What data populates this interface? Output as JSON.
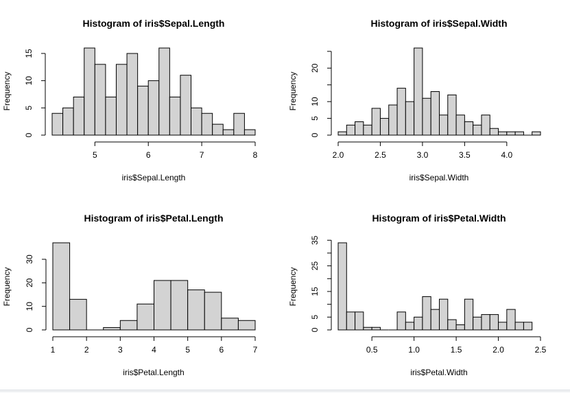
{
  "chart_data": [
    {
      "type": "bar",
      "title": "Histogram of iris$Sepal.Length",
      "xlabel": "iris$Sepal.Length",
      "ylabel": "Frequency",
      "bin_width": 0.2,
      "bin_start": 4.2,
      "values": [
        4,
        5,
        7,
        16,
        13,
        7,
        13,
        15,
        9,
        10,
        16,
        7,
        11,
        5,
        4,
        2,
        1,
        4,
        1
      ],
      "xlim": [
        4.2,
        8.0
      ],
      "ylim": [
        0,
        16
      ],
      "xticks": [
        "5",
        "6",
        "7",
        "8"
      ],
      "yticks": [
        "0",
        "5",
        "10",
        "15"
      ],
      "bar_color": "#d3d3d3"
    },
    {
      "type": "bar",
      "title": "Histogram of iris$Sepal.Width",
      "xlabel": "iris$Sepal.Width",
      "ylabel": "Frequency",
      "bin_width": 0.1,
      "bin_start": 2.0,
      "values": [
        1,
        3,
        4,
        3,
        8,
        5,
        9,
        14,
        10,
        26,
        11,
        13,
        6,
        12,
        6,
        4,
        3,
        6,
        2,
        1,
        1,
        1,
        0,
        1
      ],
      "xlim": [
        2.0,
        4.4
      ],
      "ylim": [
        0,
        26
      ],
      "xticks": [
        "2.0",
        "2.5",
        "3.0",
        "3.5",
        "4.0"
      ],
      "yticks": [
        "0",
        "5",
        "10",
        "20"
      ],
      "bar_color": "#d3d3d3"
    },
    {
      "type": "bar",
      "title": "Histogram of iris$Petal.Length",
      "xlabel": "iris$Petal.Length",
      "ylabel": "Frequency",
      "bin_width": 0.5,
      "bin_start": 1.0,
      "values": [
        37,
        13,
        0,
        1,
        4,
        11,
        21,
        21,
        17,
        16,
        5,
        4
      ],
      "xlim": [
        1,
        7
      ],
      "ylim": [
        0,
        37
      ],
      "xticks": [
        "1",
        "2",
        "3",
        "4",
        "5",
        "6",
        "7"
      ],
      "yticks": [
        "0",
        "10",
        "20",
        "30"
      ],
      "bar_color": "#d3d3d3"
    },
    {
      "type": "bar",
      "title": "Histogram of iris$Petal.Width",
      "xlabel": "iris$Petal.Width",
      "ylabel": "Frequency",
      "bin_width": 0.1,
      "bin_start": 0.1,
      "values": [
        34,
        7,
        7,
        1,
        1,
        0,
        0,
        7,
        3,
        5,
        13,
        8,
        12,
        4,
        2,
        12,
        5,
        6,
        6,
        3,
        8,
        3,
        3
      ],
      "xlim": [
        0.1,
        2.5
      ],
      "ylim": [
        0,
        34
      ],
      "xticks": [
        "0.5",
        "1.0",
        "1.5",
        "2.0",
        "2.5"
      ],
      "yticks": [
        "0",
        "5",
        "15",
        "25",
        "35"
      ],
      "bar_color": "#d3d3d3"
    }
  ]
}
